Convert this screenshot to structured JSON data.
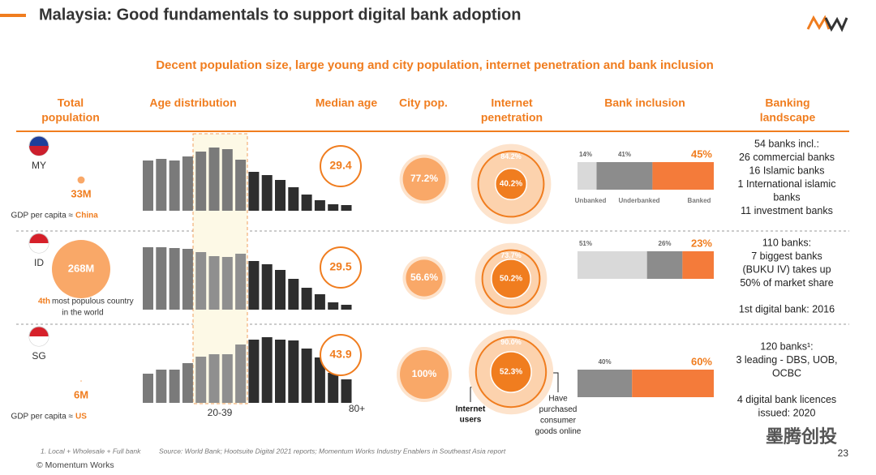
{
  "title": "Malaysia: Good fundamentals to support digital bank adoption",
  "subtitle": "Decent population size, large young and city population, internet penetration and bank inclusion",
  "columns": [
    [
      "Total",
      "population"
    ],
    [
      "Age distribution"
    ],
    [
      "Median age"
    ],
    [
      "City pop."
    ],
    [
      "Internet",
      "penetration"
    ],
    [
      "Bank inclusion"
    ],
    [
      "Banking",
      "landscape"
    ]
  ],
  "bank_inclusion_categories": [
    "Unbanked",
    "Underbanked",
    "Banked"
  ],
  "age_axis_labels": [
    "20-39",
    "80+"
  ],
  "rows": [
    {
      "country": "MY",
      "population": {
        "value": 33,
        "label": "33M"
      },
      "note": [
        "GDP per capita ≈",
        "China"
      ],
      "age_distribution": [
        62,
        64,
        62,
        67,
        73,
        78,
        76,
        63,
        48,
        44,
        38,
        29,
        20,
        13,
        8,
        7
      ],
      "median_age": "29.4",
      "city_pop": {
        "value": 77.2,
        "label": "77.2%"
      },
      "internet": {
        "value": 84.2,
        "label": "84.2%"
      },
      "online_purchase": {
        "value": 40.2,
        "label": "40.2%"
      },
      "bank_inclusion": {
        "values": [
          14,
          41,
          45
        ],
        "value_labels": [
          "14%",
          "41%",
          "45%"
        ]
      },
      "landscape": [
        [
          "54 banks incl.:",
          "26 commercial banks",
          "16 Islamic banks",
          "1 International islamic",
          "banks",
          "11 investment banks"
        ]
      ]
    },
    {
      "country": "ID",
      "population": {
        "value": 268,
        "label": "268M"
      },
      "note": [
        "4th",
        "most populous country",
        "in the world"
      ],
      "age_distribution": [
        77,
        77,
        76,
        75,
        71,
        66,
        65,
        69,
        60,
        56,
        49,
        38,
        27,
        19,
        9,
        6
      ],
      "median_age": "29.5",
      "city_pop": {
        "value": 56.6,
        "label": "56.6%"
      },
      "internet": {
        "value": 73.7,
        "label": "73.7%"
      },
      "online_purchase": {
        "value": 50.2,
        "label": "50.2%"
      },
      "bank_inclusion": {
        "values": [
          51,
          26,
          23
        ],
        "value_labels": [
          "51%",
          "26%",
          "23%"
        ]
      },
      "landscape": [
        [
          "110 banks:",
          "7 biggest banks",
          "(BUKU IV) takes up",
          "50% of market share"
        ],
        [
          "1st digital bank: 2016"
        ]
      ]
    },
    {
      "country": "SG",
      "population": {
        "value": 6,
        "label": "6M"
      },
      "note": [
        "GDP per capita ≈",
        "US"
      ],
      "age_distribution": [
        36,
        41,
        41,
        49,
        57,
        60,
        60,
        72,
        78,
        81,
        78,
        77,
        67,
        56,
        37,
        29
      ],
      "median_age": "43.9",
      "city_pop": {
        "value": 100,
        "label": "100%"
      },
      "internet": {
        "value": 90.0,
        "label": "90.0%"
      },
      "online_purchase": {
        "value": 52.3,
        "label": "52.3%"
      },
      "bank_inclusion": {
        "values": [
          null,
          40,
          60
        ],
        "value_labels": [
          null,
          "40%",
          "60%"
        ]
      },
      "landscape": [
        [
          "120 banks¹:",
          "3 leading - DBS, UOB,",
          "OCBC"
        ],
        [
          "4 digital bank licences",
          "issued: 2020"
        ]
      ]
    }
  ],
  "annotations": {
    "internet_users": [
      "Internet",
      "users"
    ],
    "purchased": [
      "Have",
      "purchased",
      "consumer",
      "goods online"
    ]
  },
  "footnote": "1. Local + Wholesale + Full bank",
  "source": "Source: World Bank; Hootsuite Digital 2021 reports; Momentum Works Industry Enablers in Southeast Asia report",
  "copyright": "© Momentum Works",
  "page_number": "23",
  "watermark": "墨腾创投"
}
